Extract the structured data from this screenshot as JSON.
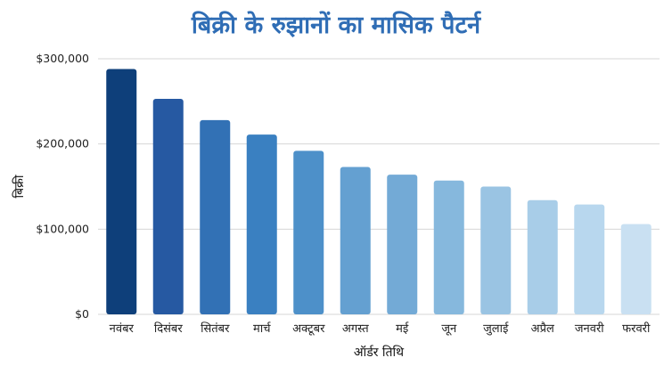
{
  "chart_data": {
    "type": "bar",
    "title": "बिक्री के रुझानों का मासिक पैटर्न",
    "xlabel": "ऑर्डर तिथि",
    "ylabel": "बिक्री",
    "categories": [
      "नवंबर",
      "दिसंबर",
      "सितंबर",
      "मार्च",
      "अक्टूबर",
      "अगस्त",
      "मई",
      "जून",
      "जुलाई",
      "अप्रैल",
      "जनवरी",
      "फरवरी"
    ],
    "values": [
      288000,
      253000,
      228000,
      211000,
      192000,
      173000,
      164000,
      157000,
      150000,
      134000,
      129000,
      106000
    ],
    "ylim": [
      0,
      300000
    ],
    "yticks": [
      0,
      100000,
      200000,
      300000
    ],
    "ytick_labels": [
      "$0",
      "$100,000",
      "$200,000",
      "$300,000"
    ],
    "grid": true,
    "bar_colors": [
      "#0e3f7a",
      "#2659a2",
      "#3271b5",
      "#3a80c1",
      "#4d90c9",
      "#64a0d1",
      "#73aad6",
      "#86b8dd",
      "#9ac4e3",
      "#a8cde8",
      "#b8d7ee",
      "#c9e0f2"
    ]
  }
}
